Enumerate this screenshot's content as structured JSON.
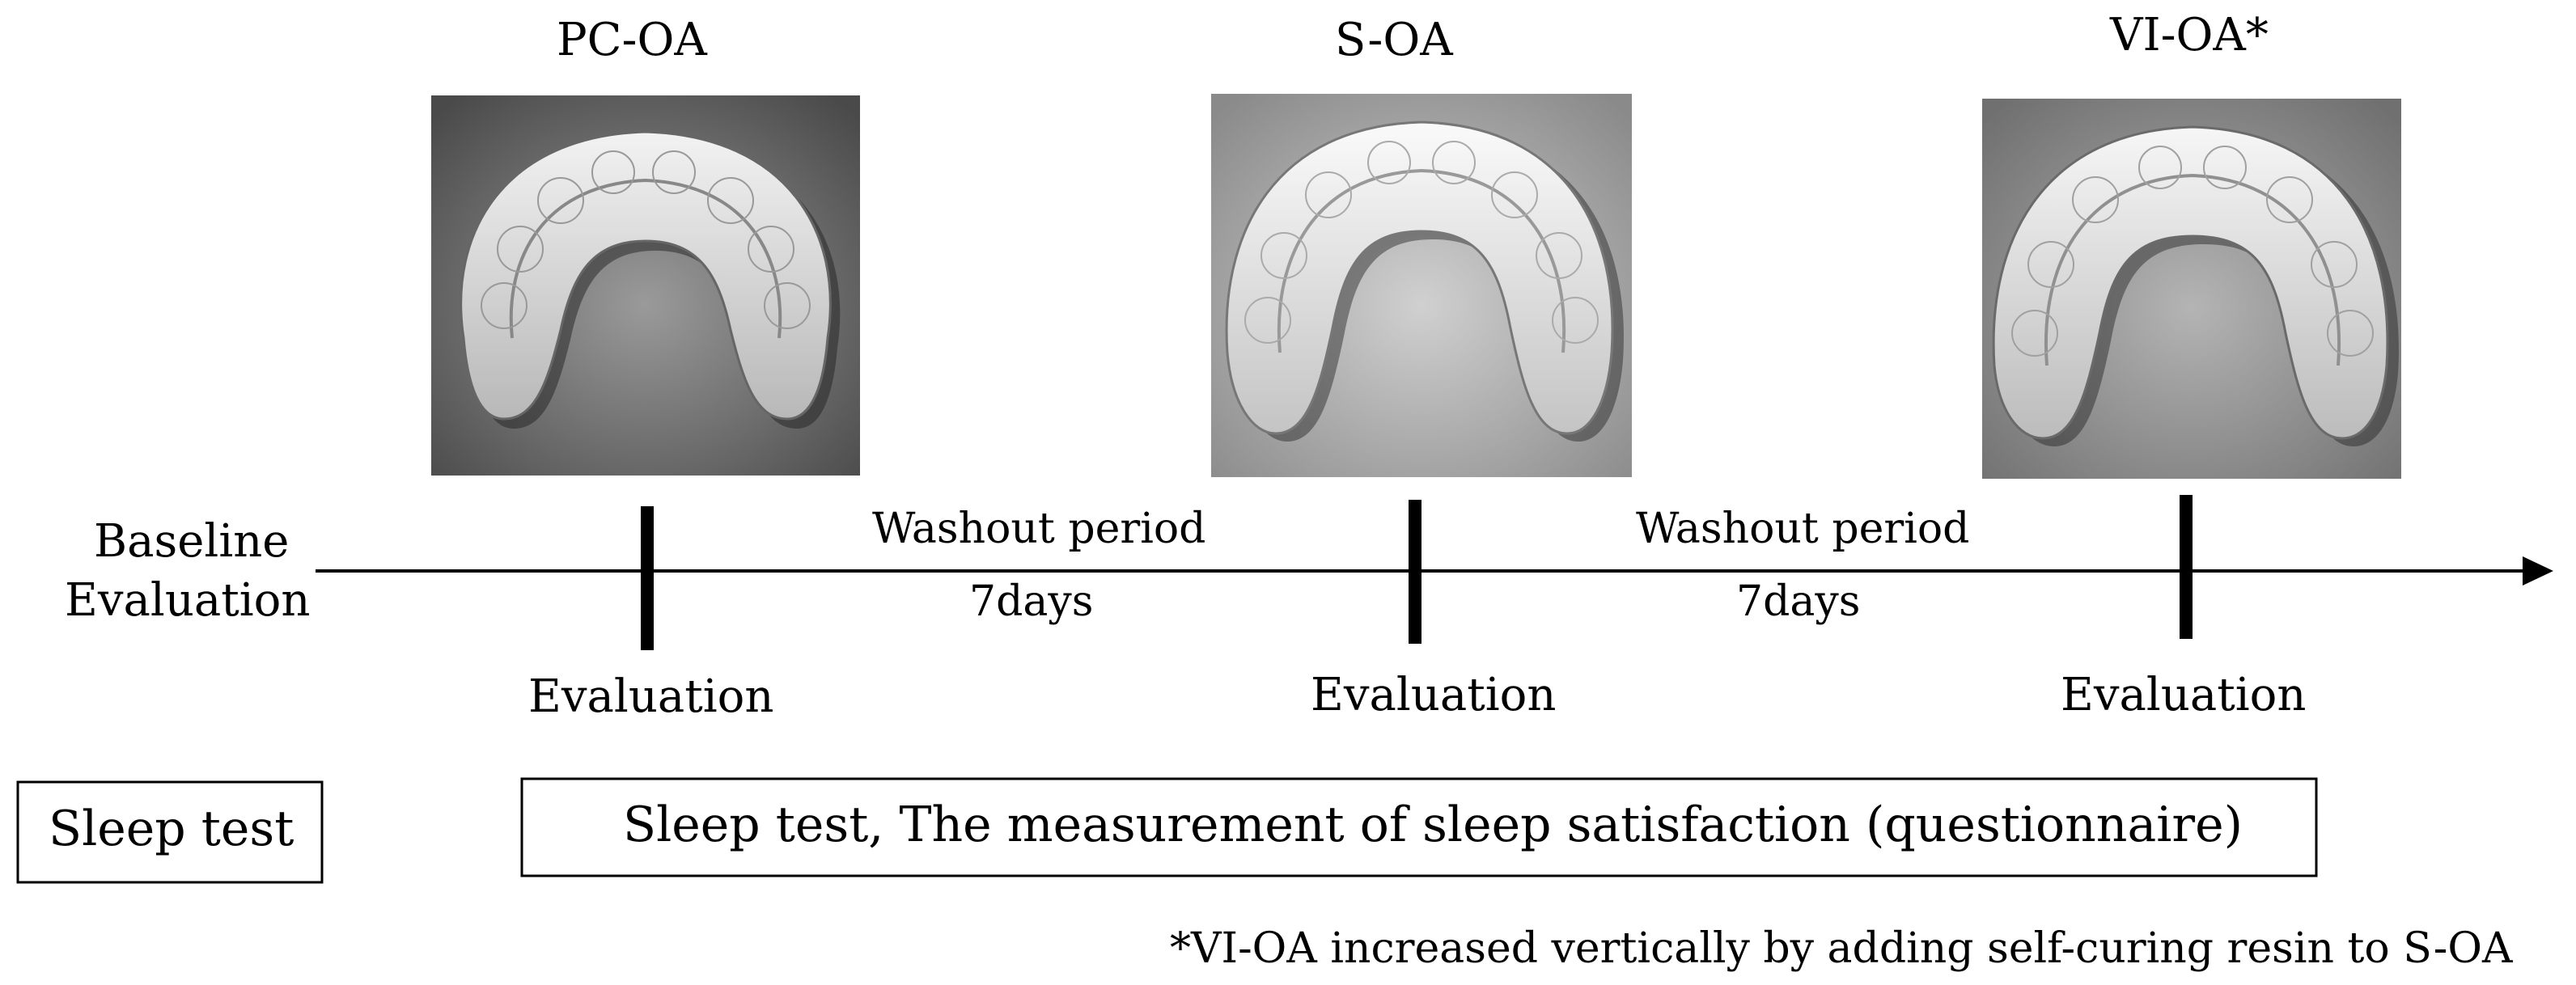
{
  "devices": [
    {
      "name": "PC-OA"
    },
    {
      "name": "S-OA"
    },
    {
      "name": "VI-OA*"
    }
  ],
  "timeline": {
    "baseline_line1": "Baseline",
    "baseline_line2": "Evaluation",
    "washout_label": "Washout period",
    "washout_duration": "7days",
    "evaluation_label": "Evaluation"
  },
  "rows": {
    "left_box": "Sleep test",
    "main_box": "Sleep test, The measurement of sleep satisfaction (questionnaire)"
  },
  "footnote": "*VI-OA increased vertically by adding self-curing resin to S-OA",
  "icons": [
    "dental-appliance-photo",
    "arrow-right-icon"
  ]
}
